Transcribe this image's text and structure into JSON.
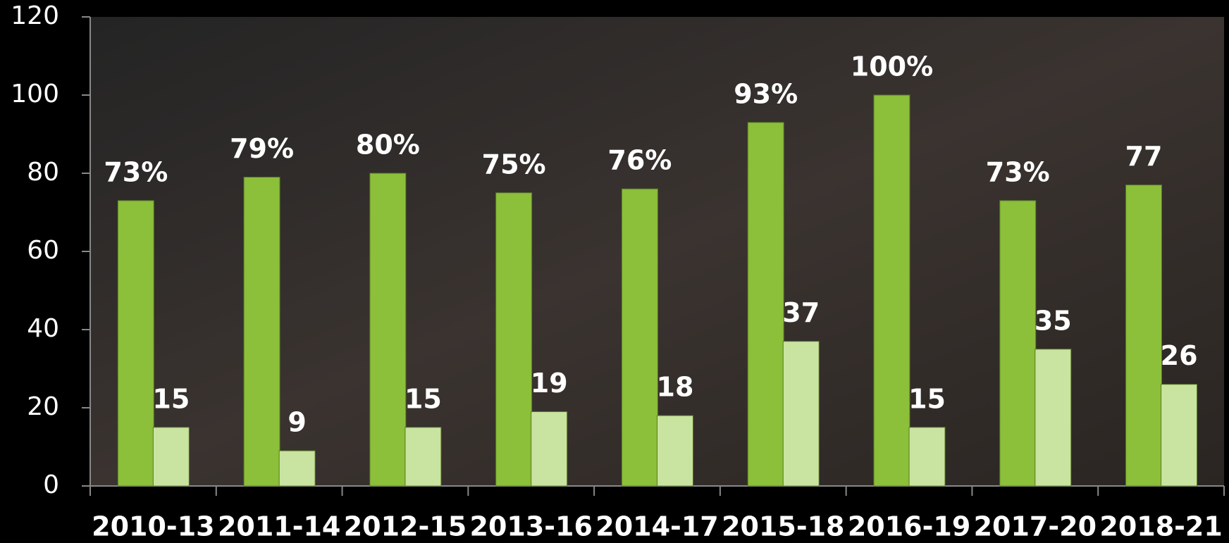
{
  "chart_data": {
    "type": "bar",
    "categories": [
      "2010-13",
      "2011-14",
      "2012-15",
      "2013-16",
      "2014-17",
      "2015-18",
      "2016-19",
      "2017-20",
      "2018-21"
    ],
    "series": [
      {
        "color": "#8cbf3a",
        "values": [
          73,
          79,
          80,
          75,
          76,
          93,
          100,
          73,
          77
        ],
        "value_labels": [
          "73%",
          "79%",
          "80%",
          "75%",
          "76%",
          "93%",
          "100%",
          "73%",
          "77"
        ]
      },
      {
        "color": "#c9e3a0",
        "values": [
          15,
          9,
          15,
          19,
          18,
          37,
          15,
          35,
          26
        ]
      }
    ],
    "ylim": [
      0,
      120
    ],
    "yticks": [
      0,
      20,
      40,
      60,
      80,
      100,
      120
    ],
    "grid": false
  }
}
